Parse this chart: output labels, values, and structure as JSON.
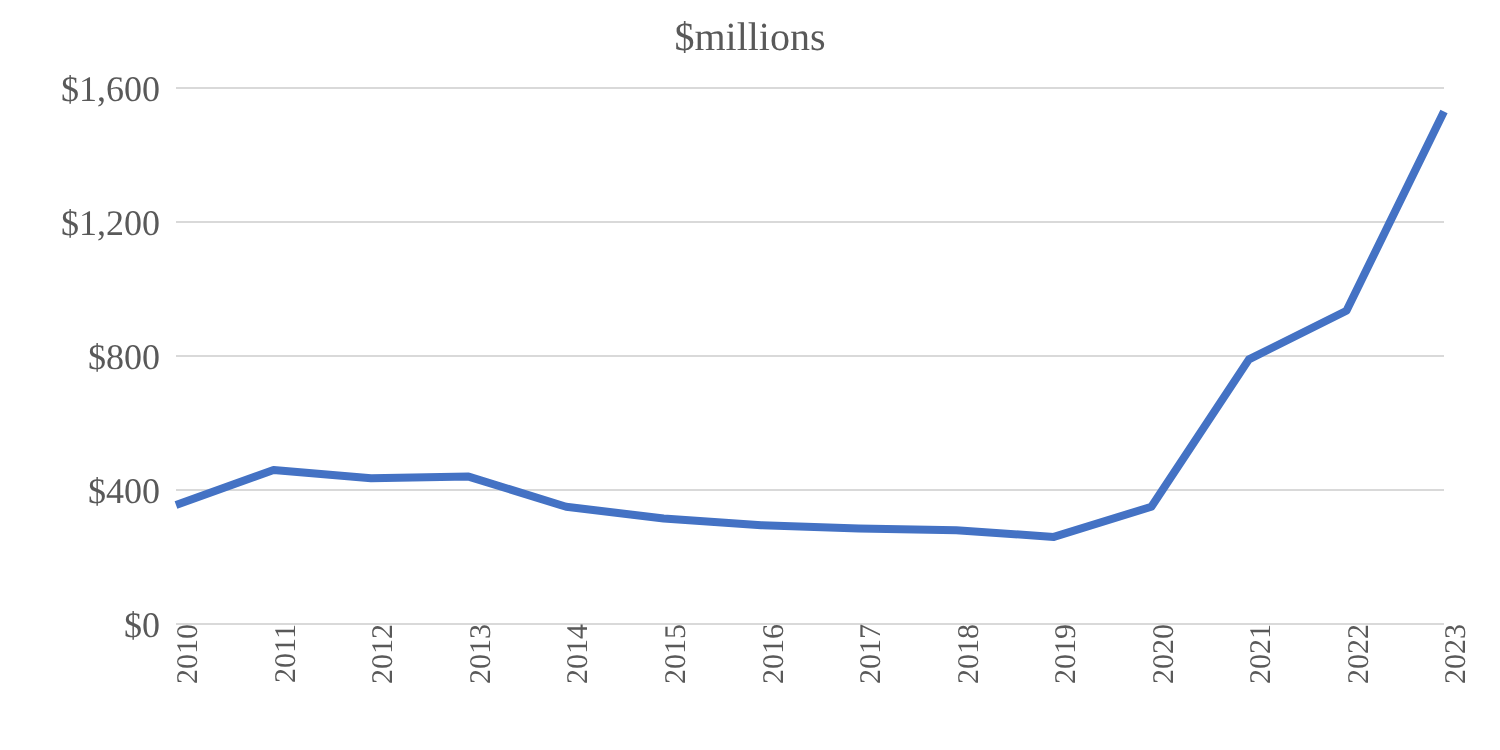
{
  "chart_data": {
    "type": "line",
    "title": "$millions",
    "categories": [
      "2010",
      "2011",
      "2012",
      "2013",
      "2014",
      "2015",
      "2016",
      "2017",
      "2018",
      "2019",
      "2020",
      "2021",
      "2022",
      "2023"
    ],
    "series": [
      {
        "color": "#4472c4",
        "values": [
          355,
          460,
          435,
          440,
          350,
          315,
          295,
          285,
          280,
          260,
          350,
          790,
          935,
          1530
        ]
      }
    ],
    "ylim": [
      0,
      1600
    ],
    "yticks": [
      {
        "value": 0,
        "label": "$0"
      },
      {
        "value": 400,
        "label": "$400"
      },
      {
        "value": 800,
        "label": "$800"
      },
      {
        "value": 1200,
        "label": "$1,200"
      },
      {
        "value": 1600,
        "label": "$1,600"
      }
    ],
    "grid": "y",
    "marker": "none",
    "line_style": "solid",
    "legend": false
  }
}
